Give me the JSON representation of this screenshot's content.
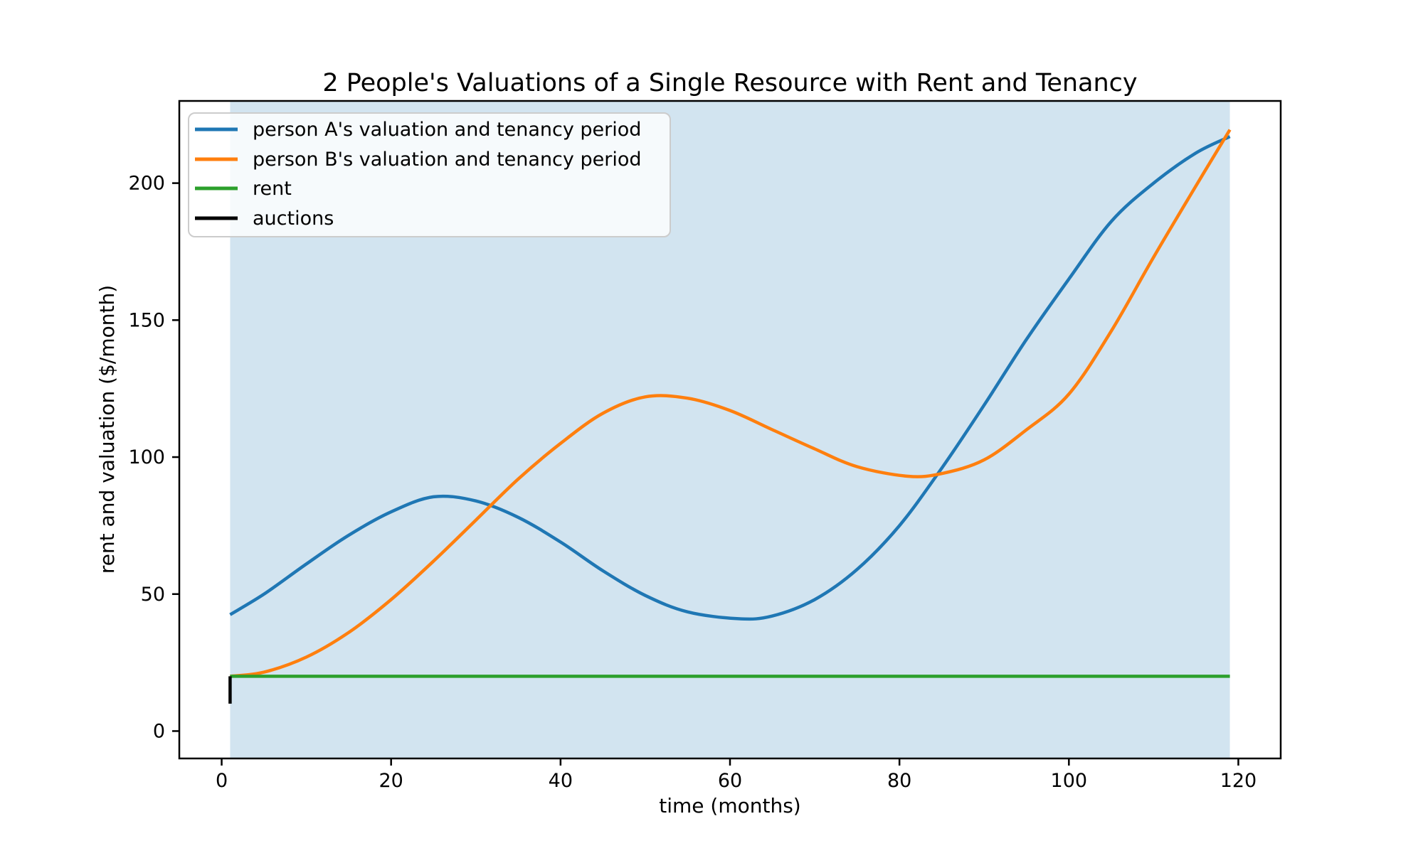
{
  "figure": {
    "background": "#ffffff"
  },
  "chart_data": {
    "type": "line",
    "title": "2 People's Valuations of a Single Resource with Rent and Tenancy",
    "xlabel": "time (months)",
    "ylabel": "rent and valuation ($/month)",
    "xlim": [
      -5,
      125
    ],
    "ylim": [
      -10,
      230
    ],
    "x_ticks": [
      0,
      20,
      40,
      60,
      80,
      100,
      120
    ],
    "y_ticks": [
      0,
      50,
      100,
      150,
      200
    ],
    "grid": false,
    "legend_position": "upper-left",
    "axis_color": "#000000",
    "tenancy_shade": {
      "x_start": 1,
      "x_end": 119,
      "color": "#1f77b4",
      "opacity": 0.2
    },
    "rent_value": 20,
    "auction_marker": {
      "month": 1,
      "value_from": 10,
      "value_to": 20
    },
    "series": [
      {
        "name": "person A's valuation and tenancy period",
        "color": "#1f77b4",
        "smooth": true,
        "points": [
          [
            1,
            42.5
          ],
          [
            5,
            50
          ],
          [
            10,
            61
          ],
          [
            15,
            71.5
          ],
          [
            20,
            80
          ],
          [
            25,
            85.5
          ],
          [
            30,
            84
          ],
          [
            35,
            78
          ],
          [
            40,
            69
          ],
          [
            45,
            58.5
          ],
          [
            50,
            49.5
          ],
          [
            55,
            43.5
          ],
          [
            61,
            41
          ],
          [
            65,
            42
          ],
          [
            70,
            48
          ],
          [
            75,
            59
          ],
          [
            80,
            75
          ],
          [
            85,
            96
          ],
          [
            90,
            119
          ],
          [
            95,
            143
          ],
          [
            100,
            165
          ],
          [
            105,
            186
          ],
          [
            110,
            200
          ],
          [
            115,
            211
          ],
          [
            119,
            217
          ]
        ]
      },
      {
        "name": "person B's valuation and tenancy period",
        "color": "#ff7f0e",
        "smooth": true,
        "points": [
          [
            1,
            20
          ],
          [
            5,
            21.5
          ],
          [
            10,
            27
          ],
          [
            15,
            36
          ],
          [
            20,
            48
          ],
          [
            25,
            62
          ],
          [
            30,
            77
          ],
          [
            35,
            92
          ],
          [
            40,
            105
          ],
          [
            45,
            116
          ],
          [
            50,
            122
          ],
          [
            55,
            121.5
          ],
          [
            60,
            117
          ],
          [
            65,
            110
          ],
          [
            70,
            103
          ],
          [
            75,
            96.5
          ],
          [
            81,
            93
          ],
          [
            85,
            94
          ],
          [
            90,
            99
          ],
          [
            95,
            110
          ],
          [
            100,
            123
          ],
          [
            105,
            146
          ],
          [
            110,
            173
          ],
          [
            115,
            199
          ],
          [
            119,
            219.5
          ]
        ]
      },
      {
        "name": "rent",
        "color": "#2ca02c",
        "smooth": false,
        "points": [
          [
            1,
            20
          ],
          [
            119,
            20
          ]
        ]
      },
      {
        "name": "auctions",
        "color": "#000000",
        "smooth": false,
        "points": [
          [
            1,
            10
          ],
          [
            1,
            20
          ]
        ]
      }
    ]
  }
}
